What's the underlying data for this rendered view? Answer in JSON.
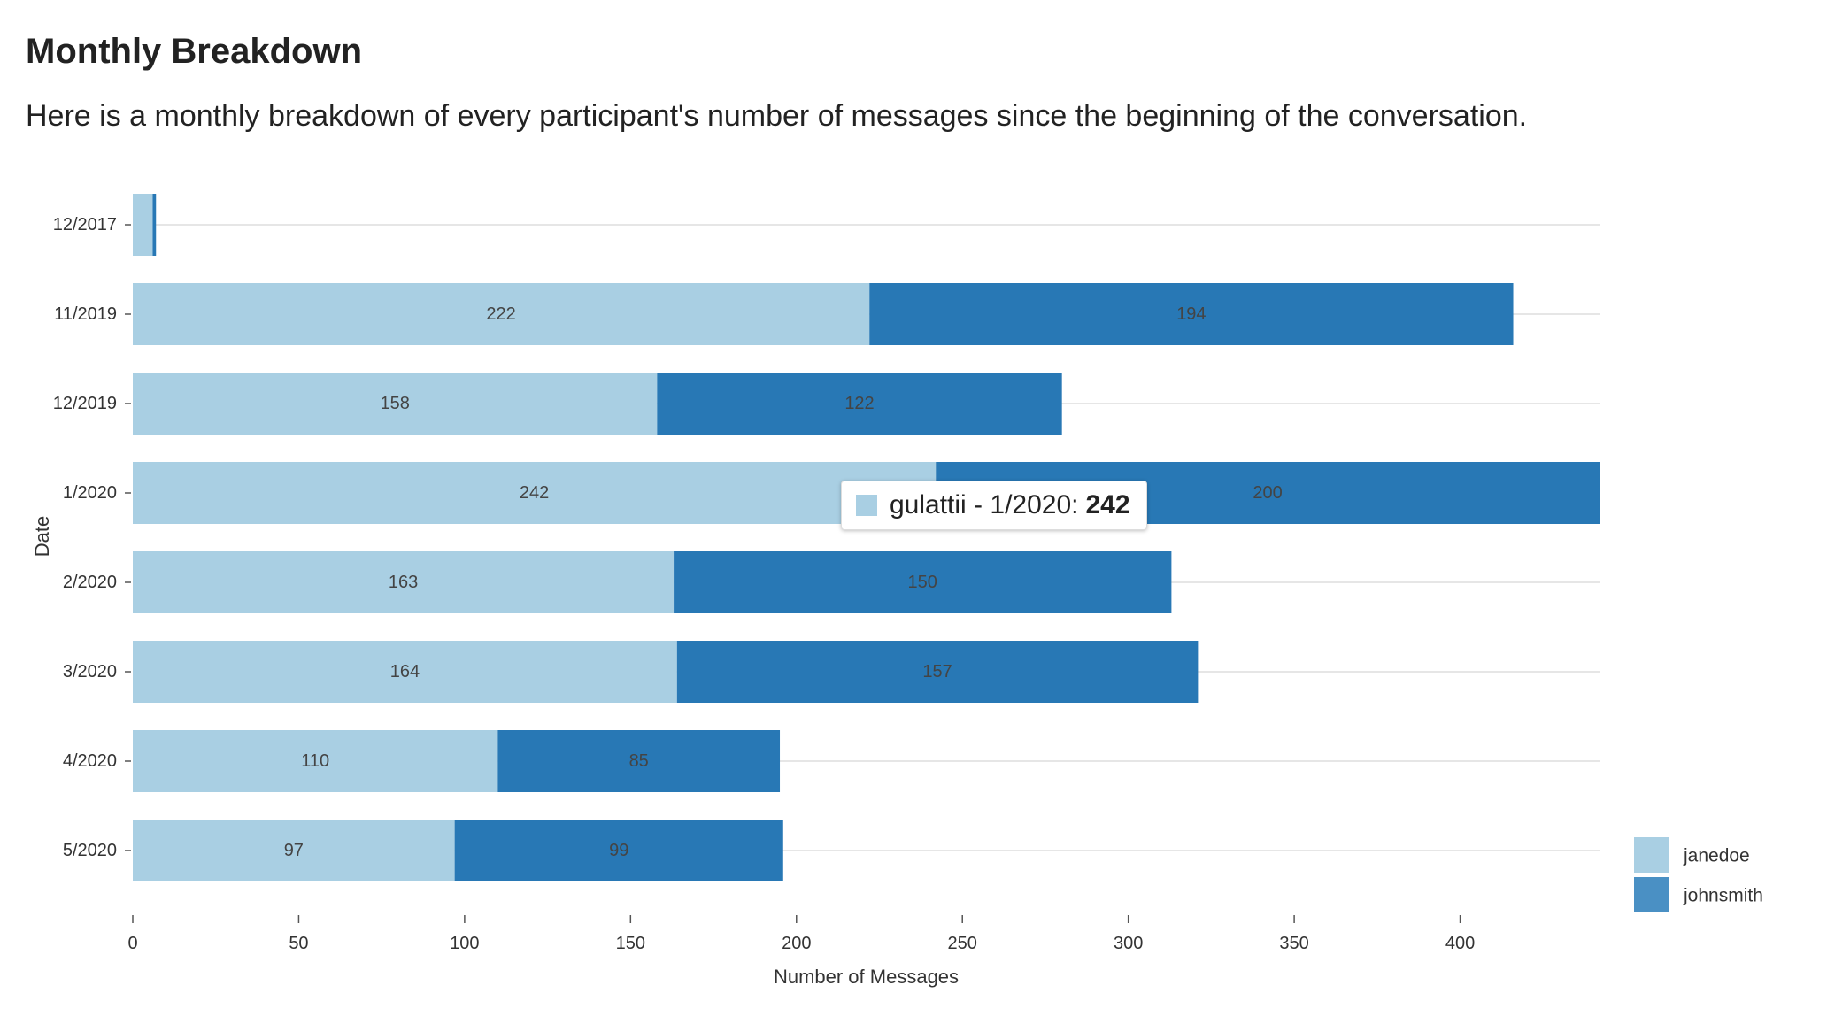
{
  "page": {
    "title": "Monthly Breakdown",
    "subtitle": "Here is a monthly breakdown of every participant's number of messages since the beginning of the conversation."
  },
  "colors": {
    "janedoe": "#a9cfe3",
    "johnsmith": "#2878b5",
    "legend_johnsmith": "#4a90c4",
    "gridline": "#dddddd",
    "axis": "#555555"
  },
  "chart_data": {
    "type": "bar",
    "orientation": "horizontal",
    "stacked": true,
    "categories": [
      "12/2017",
      "11/2019",
      "12/2019",
      "1/2020",
      "2/2020",
      "3/2020",
      "4/2020",
      "5/2020"
    ],
    "series": [
      {
        "name": "janedoe",
        "values": [
          6,
          222,
          158,
          242,
          163,
          164,
          110,
          97
        ],
        "labels": [
          "",
          "222",
          "158",
          "242",
          "163",
          "164",
          "110",
          "97"
        ]
      },
      {
        "name": "johnsmith",
        "values": [
          1,
          194,
          122,
          200,
          150,
          157,
          85,
          99
        ],
        "labels": [
          "",
          "194",
          "122",
          "200",
          "150",
          "157",
          "85",
          "99"
        ]
      }
    ],
    "xlabel": "Number of Messages",
    "ylabel": "Date",
    "xlim": [
      0,
      442
    ],
    "xticks": [
      0,
      50,
      100,
      150,
      200,
      250,
      300,
      350,
      400
    ],
    "grid": "horizontal",
    "legend": "bottom-right"
  },
  "tooltip": {
    "series": "gulattii",
    "separator": " - ",
    "category": "1/2020",
    "value_prefix": ":",
    "value": "242"
  }
}
